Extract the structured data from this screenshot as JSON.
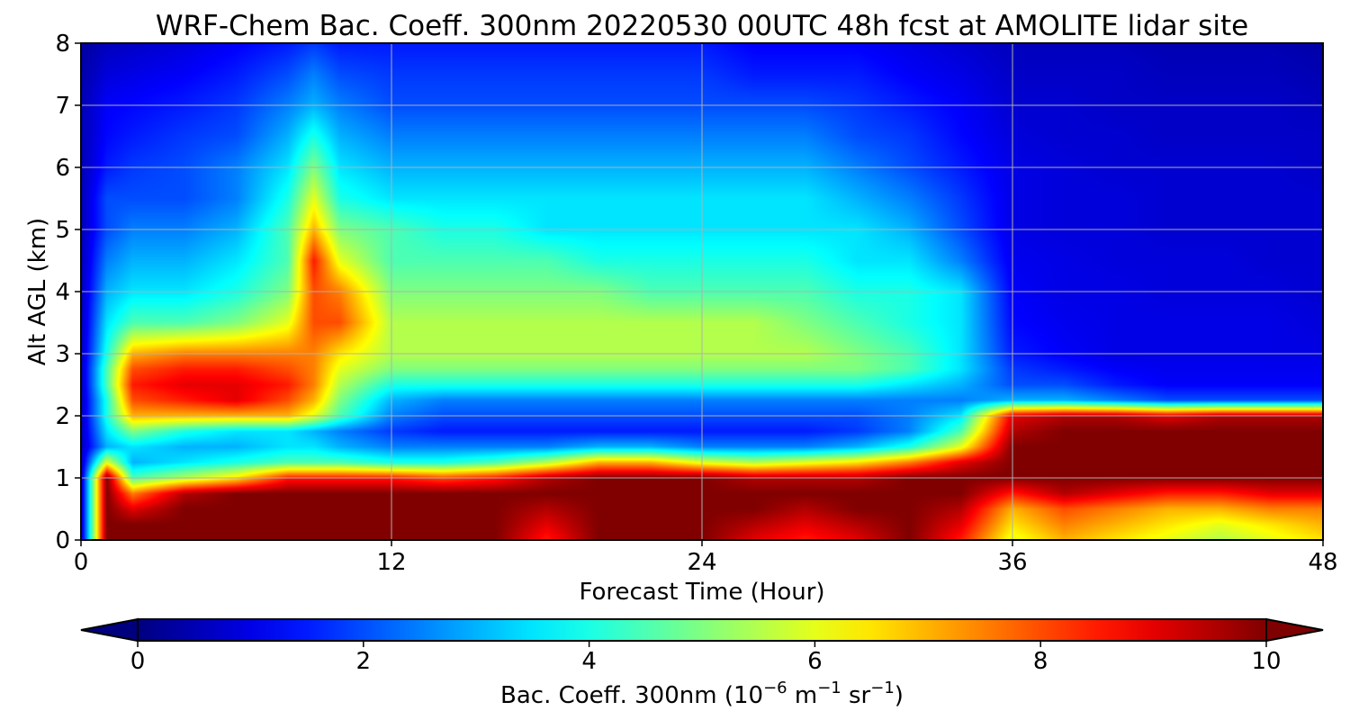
{
  "chart_data": {
    "type": "heatmap",
    "title": "WRF-Chem Bac. Coeff. 300nm  20220530 00UTC 48h fcst at AMOLITE lidar site",
    "xlabel": "Forecast Time (Hour)",
    "ylabel": "Alt AGL (km)",
    "xlim": [
      0,
      48
    ],
    "ylim": [
      0,
      8
    ],
    "x_ticks": [
      0,
      12,
      24,
      36,
      48
    ],
    "y_ticks": [
      0,
      1,
      2,
      3,
      4,
      5,
      6,
      7,
      8
    ],
    "grid": true,
    "x_tick_labels": [
      "0",
      "12",
      "24",
      "36",
      "48"
    ],
    "y_tick_labels": [
      "0",
      "1",
      "2",
      "3",
      "4",
      "5",
      "6",
      "7",
      "8"
    ],
    "colormap": "jet",
    "colorbar": {
      "label_prefix": "Bac. Coeff. 300nm  (10",
      "label_sup1": "−6",
      "label_mid": " m",
      "label_sup2": "−1",
      "label_mid2": " sr",
      "label_sup3": "−1",
      "label_suffix": ")",
      "range": [
        0,
        10
      ],
      "ticks": [
        0,
        2,
        4,
        6,
        8,
        10
      ],
      "tick_labels": [
        "0",
        "2",
        "4",
        "6",
        "8",
        "10"
      ],
      "extend": "both",
      "placement": "bottom"
    },
    "hours": [
      0,
      1,
      2,
      4,
      6,
      8,
      9,
      10,
      12,
      14,
      16,
      18,
      20,
      22,
      24,
      26,
      28,
      30,
      32,
      34,
      36,
      38,
      40,
      42,
      44,
      46,
      48
    ],
    "altitude_km": [
      0,
      0.25,
      0.5,
      0.75,
      1,
      1.25,
      1.5,
      1.75,
      2,
      2.25,
      2.5,
      2.75,
      3,
      3.5,
      4,
      4.5,
      5,
      5.5,
      6,
      6.5,
      7,
      7.5,
      8
    ],
    "values": [
      [
        0.5,
        10,
        10,
        10,
        10,
        10,
        10,
        10,
        10,
        10,
        10,
        8.5,
        10,
        10,
        10,
        9,
        8.5,
        9,
        10,
        8.5,
        6,
        7,
        6.5,
        6,
        5.5,
        6,
        6.5
      ],
      [
        0.5,
        10,
        10,
        10,
        10,
        10,
        10,
        10,
        10,
        10,
        10,
        9,
        10,
        10,
        10,
        9.5,
        9,
        9.5,
        10,
        9,
        6.5,
        7.5,
        7,
        6.5,
        6,
        6.5,
        7
      ],
      [
        0.5,
        10,
        9,
        10,
        10,
        10,
        10,
        10,
        10,
        10,
        10,
        9.5,
        10,
        10,
        10,
        10,
        9.5,
        10,
        10,
        9.5,
        7,
        8,
        7.5,
        7,
        7,
        7.5,
        7.5
      ],
      [
        0.5,
        10,
        7.5,
        9.5,
        10,
        10,
        10,
        10,
        10,
        10,
        10,
        10,
        10,
        10,
        10,
        10,
        10,
        10,
        10,
        10,
        8.5,
        9.5,
        9,
        8.5,
        8.5,
        9,
        9
      ],
      [
        0.5,
        10,
        4.5,
        5.5,
        6.5,
        8.5,
        8.5,
        8.5,
        8.5,
        8,
        8.5,
        9.5,
        10,
        10,
        10,
        9.5,
        9.5,
        9.5,
        10,
        10,
        10,
        10,
        10,
        10,
        10,
        10,
        10
      ],
      [
        0.5,
        6,
        3,
        3.5,
        4,
        4.5,
        4.5,
        4.5,
        4,
        4,
        4.5,
        5.5,
        7,
        7,
        6,
        5.5,
        6,
        6.5,
        7.5,
        9,
        10,
        10,
        10,
        10,
        10,
        10,
        10
      ],
      [
        0.5,
        3,
        3.5,
        3,
        3,
        3.5,
        3.5,
        3,
        2.5,
        2.5,
        2.5,
        2.5,
        3,
        3,
        2.5,
        2.5,
        2.5,
        3,
        4,
        6,
        10,
        10,
        10,
        10,
        10,
        10,
        10
      ],
      [
        0.5,
        3.5,
        5,
        4,
        3.5,
        3.5,
        3,
        2.5,
        1.8,
        1.5,
        1.5,
        1.5,
        1.5,
        1.5,
        1.5,
        1.5,
        1.5,
        1.8,
        2.5,
        4.5,
        9.5,
        10,
        10,
        10,
        10,
        10,
        10
      ],
      [
        0.5,
        4,
        7,
        7,
        7,
        7,
        6,
        4.5,
        2.5,
        2,
        2,
        2,
        2,
        2,
        2,
        2,
        2,
        2,
        2.5,
        3.5,
        9,
        9.5,
        9.5,
        9,
        9.5,
        9.5,
        9.5
      ],
      [
        0.5,
        4,
        8,
        8.5,
        9,
        8,
        7,
        5,
        3,
        2.5,
        2.5,
        2.5,
        2.5,
        2.5,
        2.5,
        2.5,
        2.5,
        2.5,
        2.5,
        2.5,
        3,
        3,
        2.5,
        2,
        2,
        2,
        2
      ],
      [
        0.5,
        4.5,
        8.5,
        9,
        9,
        8.5,
        7.5,
        5.5,
        4,
        4,
        4,
        4,
        4,
        4,
        4,
        4,
        4,
        4,
        3.5,
        3,
        2,
        2,
        1.5,
        1.2,
        1.2,
        1.2,
        1.2
      ],
      [
        0.5,
        4.5,
        8,
        8.5,
        8.5,
        8,
        7.5,
        6,
        5,
        5,
        5,
        5,
        5,
        5,
        5,
        5,
        5,
        5,
        4.5,
        3.5,
        1.8,
        1.5,
        1.2,
        1.1,
        1.1,
        1.1,
        1.1
      ],
      [
        0.5,
        4,
        7,
        7.5,
        7.5,
        7.5,
        7.5,
        6.5,
        5.5,
        5.5,
        5.5,
        5.5,
        5.5,
        5.5,
        5.5,
        5.5,
        5.5,
        5,
        4.5,
        3.5,
        1.5,
        1.2,
        1,
        1,
        1,
        1,
        1
      ],
      [
        0.5,
        3.5,
        4.5,
        4.5,
        5,
        6,
        8,
        8,
        5.5,
        5.5,
        5.5,
        5.5,
        5.5,
        5.5,
        5.5,
        5.5,
        5,
        4.5,
        4,
        3.5,
        1.3,
        1.1,
        1,
        1,
        1,
        1,
        0.9
      ],
      [
        0.5,
        3,
        3.5,
        3.5,
        4,
        5,
        8,
        7.5,
        5,
        5,
        5,
        5,
        5,
        4.5,
        4.5,
        4.5,
        4.5,
        4,
        4,
        3.5,
        1.2,
        1,
        1,
        0.9,
        0.9,
        0.9,
        0.8
      ],
      [
        0.5,
        2.5,
        3,
        3,
        3.5,
        4.5,
        8.5,
        6,
        4.5,
        4.5,
        4.5,
        4.5,
        4,
        4,
        4,
        4,
        4,
        3.5,
        3.5,
        2.5,
        1.1,
        1,
        0.9,
        0.9,
        0.9,
        0.8,
        0.8
      ],
      [
        0.5,
        2,
        2.5,
        2.5,
        3,
        4.5,
        7,
        5,
        4.5,
        4,
        4,
        3.5,
        3.5,
        3.5,
        3.5,
        3.5,
        3.5,
        3.5,
        3,
        2,
        1,
        0.9,
        0.9,
        0.8,
        0.8,
        0.8,
        0.8
      ],
      [
        0.5,
        2,
        2,
        2,
        2.5,
        4,
        6,
        4,
        3.5,
        3.5,
        3.5,
        3.5,
        3.5,
        3.5,
        3.5,
        3.5,
        3.5,
        3,
        2.5,
        1.8,
        1,
        0.9,
        0.9,
        0.8,
        0.8,
        0.8,
        0.8
      ],
      [
        0.5,
        1.5,
        1.8,
        2,
        2.5,
        3.5,
        5,
        3.5,
        3,
        3,
        3,
        3,
        3,
        3,
        3,
        3,
        3,
        2.5,
        2,
        1.5,
        1,
        0.9,
        0.8,
        0.8,
        0.8,
        0.8,
        0.7
      ],
      [
        0.5,
        1.3,
        1.5,
        1.8,
        2,
        3,
        4,
        3,
        2.5,
        2.5,
        2.5,
        2.5,
        2.5,
        2.5,
        2.5,
        2.5,
        2.5,
        2,
        1.8,
        1.3,
        0.9,
        0.8,
        0.8,
        0.7,
        0.7,
        0.7,
        0.7
      ],
      [
        0.5,
        1.2,
        1.3,
        1.5,
        1.8,
        2.5,
        3,
        2.5,
        2,
        2,
        2,
        2,
        2,
        2,
        2,
        2,
        2,
        1.8,
        1.5,
        1.2,
        0.8,
        0.8,
        0.7,
        0.7,
        0.7,
        0.7,
        0.6
      ],
      [
        0.4,
        0.9,
        1,
        1.2,
        1.5,
        2,
        2.5,
        2,
        1.8,
        1.8,
        1.8,
        1.8,
        1.8,
        1.8,
        1.8,
        1.5,
        1.5,
        1.5,
        1.2,
        1,
        0.7,
        0.7,
        0.7,
        0.6,
        0.6,
        0.6,
        0.5
      ],
      [
        0.3,
        0.6,
        0.7,
        0.9,
        1.2,
        1.5,
        1.8,
        1.5,
        1.5,
        1.5,
        1.5,
        1.5,
        1.5,
        1.5,
        1.5,
        1.2,
        1.2,
        1.2,
        1,
        0.8,
        0.6,
        0.6,
        0.6,
        0.5,
        0.5,
        0.5,
        0.4
      ]
    ]
  }
}
